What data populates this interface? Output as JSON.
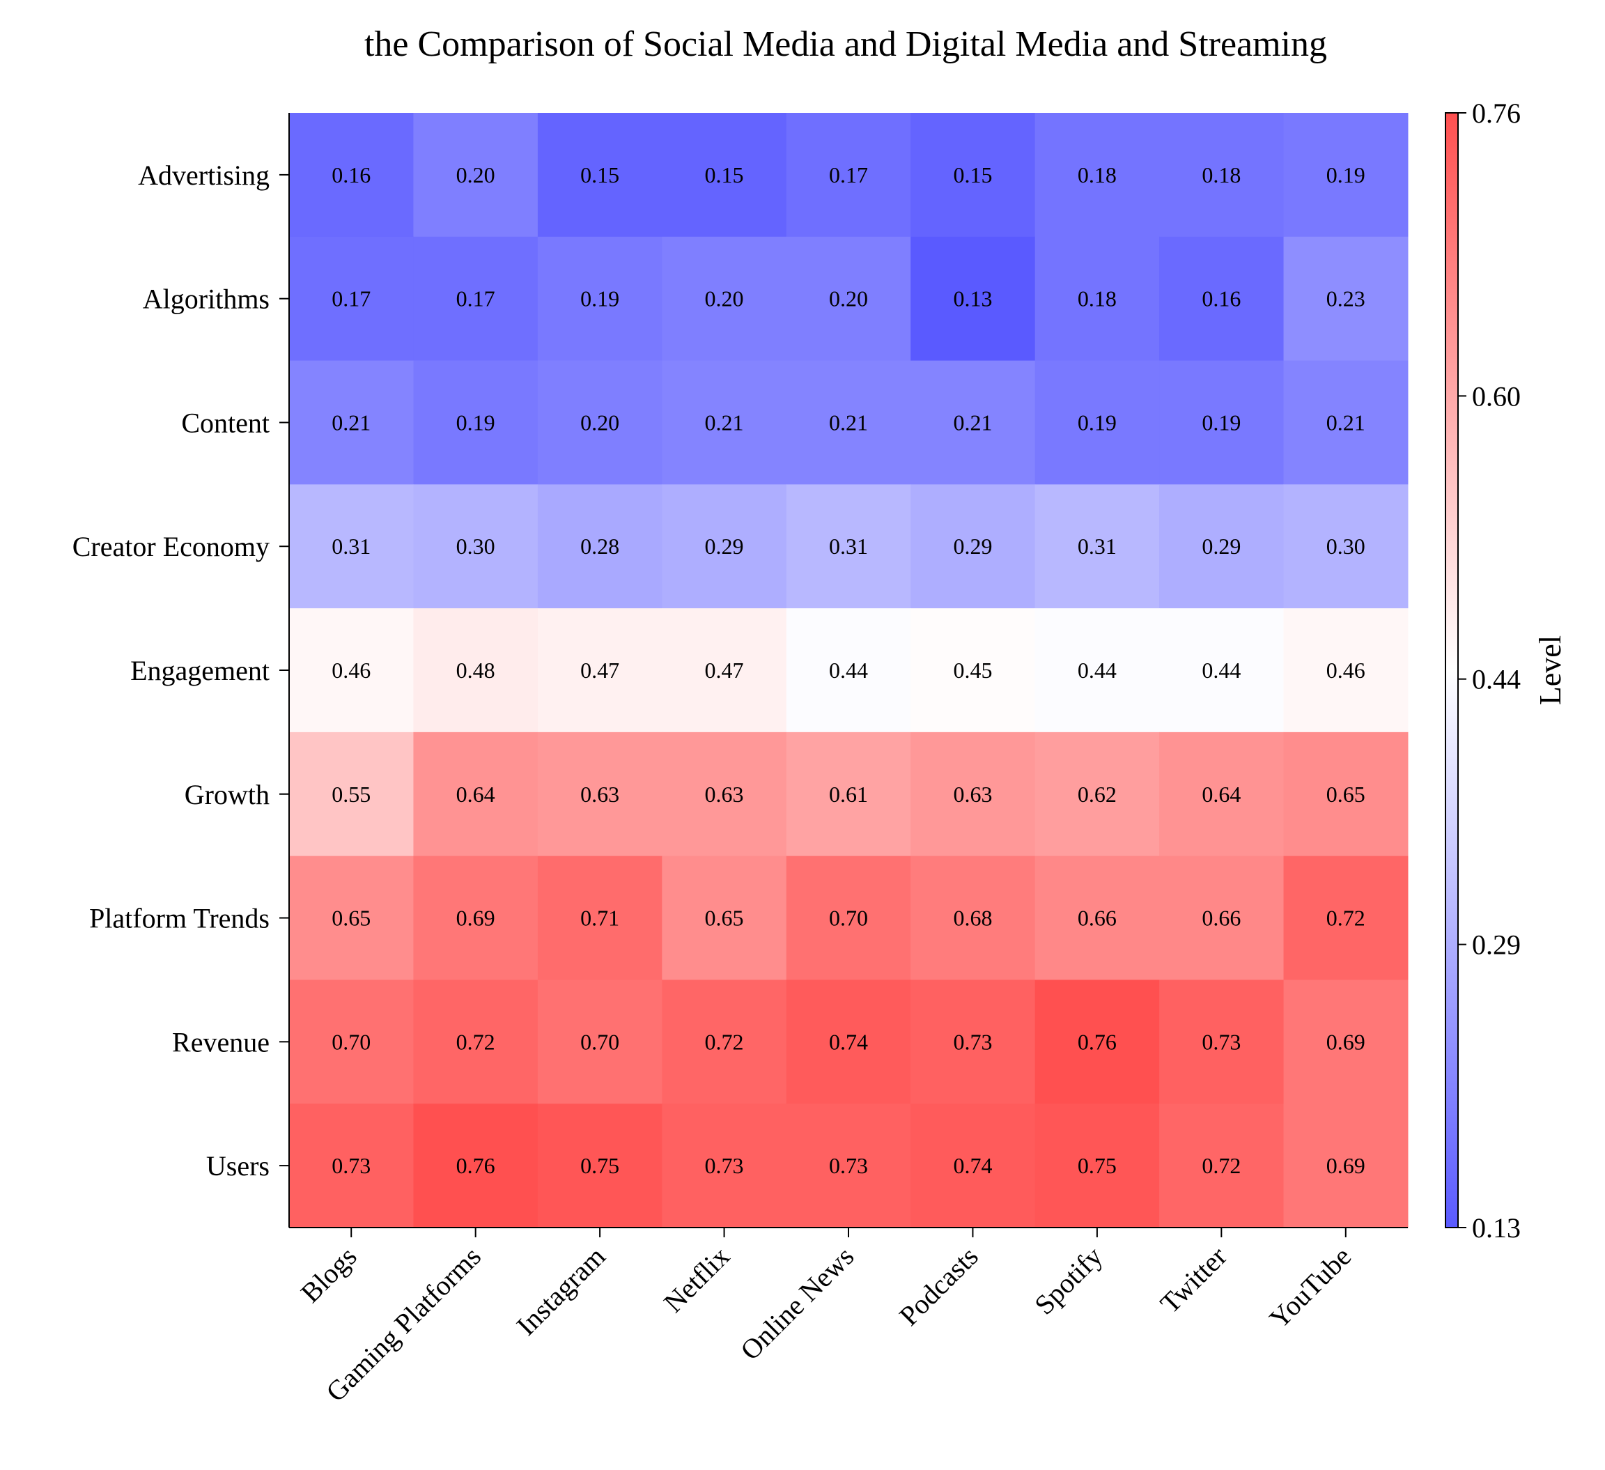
{
  "chart_data": {
    "type": "heatmap",
    "title": "the Comparison of Social Media and Digital Media and Streaming",
    "x_categories": [
      "Blogs",
      "Gaming Platforms",
      "Instagram",
      "Netflix",
      "Online News",
      "Podcasts",
      "Spotify",
      "Twitter",
      "YouTube"
    ],
    "y_categories": [
      "Advertising",
      "Algorithms",
      "Content",
      "Creator Economy",
      "Engagement",
      "Growth",
      "Platform Trends",
      "Revenue",
      "Users"
    ],
    "values": [
      [
        0.16,
        0.2,
        0.15,
        0.15,
        0.17,
        0.15,
        0.18,
        0.18,
        0.19
      ],
      [
        0.17,
        0.17,
        0.19,
        0.2,
        0.2,
        0.13,
        0.18,
        0.16,
        0.23
      ],
      [
        0.21,
        0.19,
        0.2,
        0.21,
        0.21,
        0.21,
        0.19,
        0.19,
        0.21
      ],
      [
        0.31,
        0.3,
        0.28,
        0.29,
        0.31,
        0.29,
        0.31,
        0.29,
        0.3
      ],
      [
        0.46,
        0.48,
        0.47,
        0.47,
        0.44,
        0.45,
        0.44,
        0.44,
        0.46
      ],
      [
        0.55,
        0.64,
        0.63,
        0.63,
        0.61,
        0.63,
        0.62,
        0.64,
        0.65
      ],
      [
        0.65,
        0.69,
        0.71,
        0.65,
        0.7,
        0.68,
        0.66,
        0.66,
        0.72
      ],
      [
        0.7,
        0.72,
        0.7,
        0.72,
        0.74,
        0.73,
        0.76,
        0.73,
        0.69
      ],
      [
        0.73,
        0.76,
        0.75,
        0.73,
        0.73,
        0.74,
        0.75,
        0.72,
        0.69
      ]
    ],
    "value_format": "2 decimals",
    "colorbar": {
      "label": "Level",
      "min": 0.13,
      "max": 0.76,
      "ticks": [
        "0.13",
        "0.29",
        "0.44",
        "0.60",
        "0.76"
      ],
      "colors": [
        "#5a5aff",
        "#ffffff",
        "#ff5050"
      ]
    },
    "grid": false
  }
}
